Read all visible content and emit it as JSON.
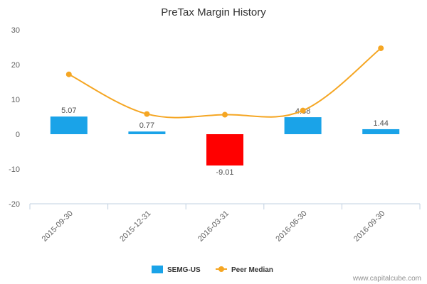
{
  "chart_data": {
    "type": "bar",
    "title": "PreTax Margin History",
    "xlabel": "",
    "ylabel": "",
    "ylim": [
      -20,
      30
    ],
    "yticks": [
      -20,
      -10,
      0,
      10,
      20,
      30
    ],
    "categories": [
      "2015-09-30",
      "2015-12-31",
      "2016-03-31",
      "2016-06-30",
      "2016-09-30"
    ],
    "series": [
      {
        "name": "SEMG-US",
        "type": "bar",
        "values": [
          5.07,
          0.77,
          -9.01,
          4.88,
          1.44
        ],
        "labels": [
          "5.07",
          "0.77",
          "-9.01",
          "4.88",
          "1.44"
        ],
        "positive_color": "#1aa3e8",
        "negative_color": "#ff0000"
      },
      {
        "name": "Peer Median",
        "type": "line",
        "values": [
          17.2,
          5.8,
          5.6,
          6.8,
          24.7
        ],
        "color": "#f5a623"
      }
    ],
    "legend_position": "bottom-center",
    "grid": false
  },
  "watermark": "www.capitalcube.com",
  "colors": {
    "axis": "#c0d0e0",
    "text": "#606060"
  }
}
